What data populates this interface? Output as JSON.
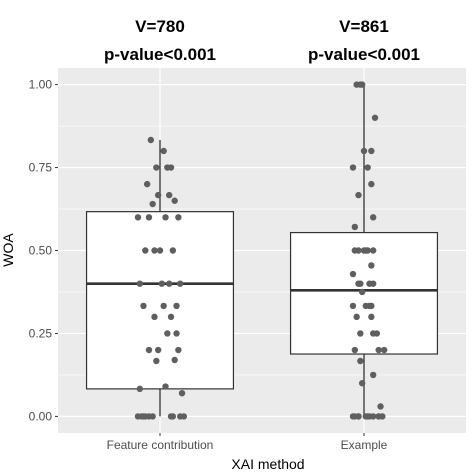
{
  "chart_data": {
    "type": "box",
    "xlabel": "XAI method",
    "ylabel": "WOA",
    "ylim": [
      -0.05,
      1.05
    ],
    "yticks": [
      0.0,
      0.25,
      0.5,
      0.75,
      1.0
    ],
    "ytick_labels": [
      "0.00",
      "0.25",
      "0.50",
      "0.75",
      "1.00"
    ],
    "grid": true,
    "categories": [
      "Feature contribution",
      "Example"
    ],
    "annotations": [
      {
        "category": "Feature contribution",
        "line1": "V=780",
        "line2": "p-value<0.001"
      },
      {
        "category": "Example",
        "line1": "V=861",
        "line2": "p-value<0.001"
      }
    ],
    "boxes": [
      {
        "category": "Feature contribution",
        "whisker_low": 0.0,
        "q1": 0.083,
        "median": 0.4,
        "q3": 0.617,
        "whisker_high": 0.833
      },
      {
        "category": "Example",
        "whisker_low": 0.0,
        "q1": 0.188,
        "median": 0.38,
        "q3": 0.554,
        "whisker_high": 1.0
      }
    ],
    "points": [
      {
        "category": "Feature contribution",
        "x": [
          -0.05,
          0.02,
          0.06,
          -0.02,
          0.04,
          -0.07,
          -0.01,
          0.05,
          0.08,
          -0.04,
          0.1,
          -0.06,
          -0.12,
          0.03,
          -0.08,
          0.0,
          -0.03,
          0.07,
          0.11,
          0.05,
          -0.11,
          0.01,
          0.09,
          0.02,
          -0.09,
          -0.03,
          0.06,
          0.04,
          0.09,
          -0.06,
          -0.01,
          0.1,
          0.08,
          -0.02,
          -0.11,
          0.03,
          0.12,
          -0.08,
          -0.04,
          -0.1,
          0.06,
          0.13,
          -0.09,
          -0.12,
          0.11,
          0.07,
          -0.06
        ],
        "y": [
          0.833,
          0.8,
          0.75,
          0.75,
          0.75,
          0.7,
          0.667,
          0.667,
          0.65,
          0.64,
          0.6,
          0.6,
          0.6,
          0.6,
          0.5,
          0.5,
          0.5,
          0.5,
          0.4,
          0.4,
          0.4,
          0.4,
          0.333,
          0.333,
          0.333,
          0.3,
          0.3,
          0.25,
          0.25,
          0.2,
          0.2,
          0.2,
          0.17,
          0.167,
          0.083,
          0.09,
          0.07,
          0.0,
          0.0,
          0.0,
          0.0,
          0.0,
          0.0,
          0.0,
          0.0,
          0.0,
          0.0
        ]
      },
      {
        "category": "Example",
        "x": [
          -0.04,
          -0.02,
          -0.01,
          0.06,
          0.04,
          0.0,
          0.02,
          -0.06,
          0.04,
          -0.03,
          0.05,
          -0.05,
          0.01,
          0.05,
          -0.03,
          -0.05,
          0.0,
          0.02,
          0.04,
          -0.06,
          -0.02,
          0.03,
          0.05,
          -0.03,
          -0.01,
          -0.06,
          0.04,
          0.01,
          0.03,
          -0.04,
          0.04,
          0.07,
          0.05,
          -0.02,
          0.11,
          0.08,
          -0.05,
          -0.02,
          0.05,
          -0.01,
          -0.03,
          0.1,
          0.08,
          0.02,
          0.05,
          -0.03,
          0.03,
          -0.06,
          0.01,
          -0.05,
          0.08,
          0.09
        ],
        "y": [
          1.0,
          1.0,
          1.0,
          0.9,
          0.8,
          0.8,
          0.75,
          0.75,
          0.7,
          0.667,
          0.6,
          0.571,
          0.5,
          0.5,
          0.5,
          0.5,
          0.5,
          0.5,
          0.455,
          0.429,
          0.4,
          0.4,
          0.4,
          0.4,
          0.375,
          0.333,
          0.333,
          0.333,
          0.333,
          0.3,
          0.3,
          0.25,
          0.25,
          0.25,
          0.2,
          0.2,
          0.2,
          0.167,
          0.125,
          0.1,
          0.0,
          0.0,
          0.0,
          0.0,
          0.0,
          0.0,
          0.0,
          0.0,
          0.0,
          0.0,
          0.0,
          0.03
        ]
      }
    ]
  }
}
